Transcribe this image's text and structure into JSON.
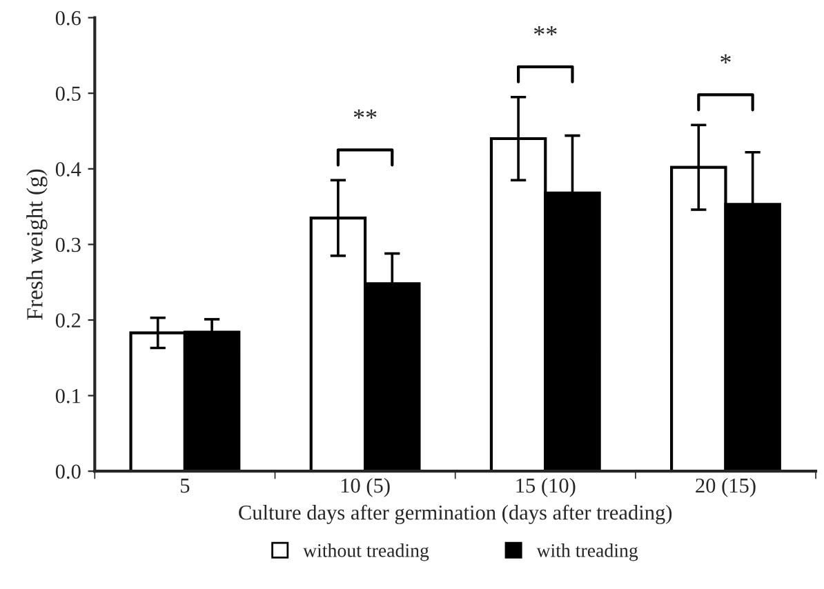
{
  "chart_data": {
    "type": "bar",
    "xlabel": "Culture days after germination (days after treading)",
    "ylabel": "Fresh weight (g)",
    "categories": [
      "5",
      "10 (5)",
      "15 (10)",
      "20 (15)"
    ],
    "series": [
      {
        "name": "without treading",
        "color": "#ffffff",
        "values": [
          0.183,
          0.335,
          0.44,
          0.402
        ],
        "errors": [
          0.02,
          0.05,
          0.055,
          0.056
        ]
      },
      {
        "name": "with treading",
        "color": "#000000",
        "values": [
          0.184,
          0.248,
          0.368,
          0.353
        ],
        "errors": [
          0.017,
          0.04,
          0.076,
          0.069
        ]
      }
    ],
    "ylim": [
      0,
      0.6
    ],
    "yticks": [
      {
        "value": 0,
        "label": "0.0"
      },
      0.1,
      0.2,
      0.3,
      0.4,
      0.5,
      0.6
    ],
    "annotations": [
      "**",
      "**",
      "*"
    ],
    "grid": false,
    "legend": "bottom"
  }
}
